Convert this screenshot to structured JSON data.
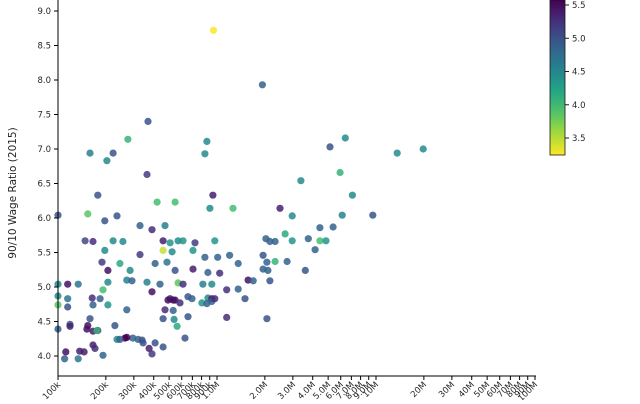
{
  "chart_data": {
    "type": "scatter",
    "title": "",
    "xlabel": "",
    "ylabel": "90/10 Wage Ratio (2015)",
    "x_scale": "log",
    "x_range_millions": [
      0.1,
      100
    ],
    "y_range": [
      3.7,
      9.2
    ],
    "grid": false,
    "x_ticks": [
      {
        "v": 0.1,
        "label": "100k"
      },
      {
        "v": 0.2,
        "label": "200k"
      },
      {
        "v": 0.3,
        "label": "300k"
      },
      {
        "v": 0.4,
        "label": "400k"
      },
      {
        "v": 0.5,
        "label": "500k"
      },
      {
        "v": 0.6,
        "label": "600k"
      },
      {
        "v": 0.7,
        "label": "700k"
      },
      {
        "v": 0.8,
        "label": "800k"
      },
      {
        "v": 0.9,
        "label": "900k"
      },
      {
        "v": 1,
        "label": "1.0M"
      },
      {
        "v": 2,
        "label": "2.0M"
      },
      {
        "v": 3,
        "label": "3.0M"
      },
      {
        "v": 4,
        "label": "4.0M"
      },
      {
        "v": 5,
        "label": "5.0M"
      },
      {
        "v": 6,
        "label": "6.0M"
      },
      {
        "v": 7,
        "label": "7.0M"
      },
      {
        "v": 8,
        "label": "8.0M"
      },
      {
        "v": 9,
        "label": "9.0M"
      },
      {
        "v": 10,
        "label": "10M"
      },
      {
        "v": 20,
        "label": "20M"
      },
      {
        "v": 30,
        "label": "30M"
      },
      {
        "v": 40,
        "label": "40M"
      },
      {
        "v": 50,
        "label": "50M"
      },
      {
        "v": 60,
        "label": "60M"
      },
      {
        "v": 70,
        "label": "70M"
      },
      {
        "v": 80,
        "label": "80M"
      },
      {
        "v": 90,
        "label": "90M"
      },
      {
        "v": 100,
        "label": "100M"
      }
    ],
    "y_ticks": [
      {
        "v": 4.0,
        "label": "4.0"
      },
      {
        "v": 4.5,
        "label": "4.5"
      },
      {
        "v": 5.0,
        "label": "5.0"
      },
      {
        "v": 5.5,
        "label": "5.5"
      },
      {
        "v": 6.0,
        "label": "6.0"
      },
      {
        "v": 6.5,
        "label": "6.5"
      },
      {
        "v": 7.0,
        "label": "7.0"
      },
      {
        "v": 7.5,
        "label": "7.5"
      },
      {
        "v": 8.0,
        "label": "8.0"
      },
      {
        "v": 8.5,
        "label": "8.5"
      },
      {
        "v": 9.0,
        "label": "9.0"
      }
    ],
    "colorbar": {
      "colormap": "viridis_reversed",
      "position": "top-right",
      "tick_labels": [
        "5.5",
        "5.0",
        "4.5",
        "4.0",
        "3.5"
      ],
      "tick_values": [
        5.5,
        5.0,
        4.5,
        4.0,
        3.5
      ],
      "value_min": 3.3,
      "value_max": 5.6
    },
    "points": [
      [
        0.95,
        8.72,
        3.3
      ],
      [
        1.93,
        7.93,
        4.9
      ],
      [
        0.368,
        7.4,
        5.0
      ],
      [
        5.14,
        7.03,
        5.0
      ],
      [
        6.41,
        7.16,
        4.5
      ],
      [
        13.6,
        6.94,
        4.5
      ],
      [
        19.8,
        7.0,
        4.5
      ],
      [
        0.275,
        7.14,
        4.1
      ],
      [
        0.159,
        6.94,
        4.6
      ],
      [
        0.222,
        6.94,
        5.0
      ],
      [
        0.203,
        6.83,
        4.5
      ],
      [
        0.864,
        7.11,
        4.5
      ],
      [
        0.839,
        6.93,
        4.5
      ],
      [
        0.363,
        6.63,
        5.2
      ],
      [
        3.37,
        6.54,
        4.5
      ],
      [
        5.95,
        6.66,
        4.1
      ],
      [
        0.178,
        6.33,
        5.0
      ],
      [
        0.942,
        6.33,
        5.4
      ],
      [
        0.42,
        6.23,
        4.0
      ],
      [
        0.545,
        6.23,
        4.0
      ],
      [
        0.902,
        6.14,
        4.5
      ],
      [
        0.154,
        6.06,
        3.9
      ],
      [
        0.1,
        6.04,
        5.0
      ],
      [
        0.197,
        5.96,
        5.0
      ],
      [
        2.49,
        6.14,
        5.4
      ],
      [
        7.1,
        6.33,
        4.5
      ],
      [
        6.13,
        6.04,
        4.6
      ],
      [
        9.55,
        6.04,
        5.0
      ],
      [
        2.97,
        6.03,
        4.5
      ],
      [
        4.44,
        5.86,
        4.9
      ],
      [
        5.37,
        5.87,
        4.9
      ],
      [
        2.68,
        5.77,
        4.2
      ],
      [
        1.26,
        6.14,
        4.0
      ],
      [
        0.235,
        6.03,
        5.0
      ],
      [
        0.328,
        5.89,
        4.9
      ],
      [
        0.39,
        5.83,
        5.3
      ],
      [
        0.471,
        5.89,
        4.6
      ],
      [
        0.148,
        5.67,
        5.1
      ],
      [
        0.166,
        5.66,
        5.3
      ],
      [
        0.222,
        5.67,
        4.5
      ],
      [
        0.256,
        5.66,
        4.5
      ],
      [
        0.197,
        5.53,
        4.5
      ],
      [
        0.458,
        5.67,
        5.4
      ],
      [
        0.507,
        5.64,
        4.4
      ],
      [
        0.569,
        5.67,
        4.5
      ],
      [
        0.611,
        5.67,
        4.4
      ],
      [
        0.727,
        5.64,
        5.2
      ],
      [
        0.969,
        5.67,
        4.4
      ],
      [
        0.458,
        5.53,
        3.5
      ],
      [
        0.522,
        5.51,
        4.5
      ],
      [
        0.706,
        5.53,
        4.4
      ],
      [
        0.328,
        5.47,
        5.2
      ],
      [
        2.03,
        5.7,
        4.9
      ],
      [
        2.15,
        5.66,
        4.9
      ],
      [
        2.32,
        5.66,
        4.9
      ],
      [
        2.97,
        5.67,
        4.4
      ],
      [
        3.75,
        5.7,
        4.9
      ],
      [
        4.44,
        5.67,
        4.0
      ],
      [
        4.85,
        5.67,
        4.4
      ],
      [
        4.14,
        5.54,
        4.9
      ],
      [
        1.2,
        5.46,
        4.9
      ],
      [
        1.01,
        5.43,
        4.9
      ],
      [
        0.839,
        5.43,
        4.9
      ],
      [
        0.189,
        5.36,
        5.2
      ],
      [
        0.206,
        5.24,
        5.5
      ],
      [
        0.245,
        5.34,
        4.2
      ],
      [
        0.284,
        5.24,
        4.5
      ],
      [
        0.408,
        5.34,
        4.9
      ],
      [
        0.485,
        5.36,
        4.7
      ],
      [
        0.545,
        5.24,
        5.0
      ],
      [
        0.706,
        5.26,
        5.4
      ],
      [
        0.876,
        5.21,
        4.9
      ],
      [
        1.04,
        5.2,
        5.3
      ],
      [
        1.36,
        5.34,
        4.9
      ],
      [
        1.95,
        5.46,
        5.0
      ],
      [
        2.06,
        5.36,
        4.9
      ],
      [
        2.32,
        5.37,
        4.1
      ],
      [
        2.76,
        5.37,
        4.9
      ],
      [
        1.95,
        5.26,
        4.9
      ],
      [
        2.09,
        5.24,
        4.9
      ],
      [
        3.59,
        5.24,
        5.0
      ],
      [
        0.1,
        5.04,
        4.5
      ],
      [
        0.115,
        5.04,
        5.5
      ],
      [
        0.134,
        5.04,
        4.7
      ],
      [
        0.206,
        5.07,
        4.5
      ],
      [
        0.271,
        5.1,
        4.6
      ],
      [
        0.292,
        5.09,
        4.9
      ],
      [
        0.192,
        4.96,
        4.0
      ],
      [
        0.363,
        5.07,
        4.6
      ],
      [
        0.438,
        5.04,
        4.9
      ],
      [
        0.569,
        5.06,
        3.9
      ],
      [
        0.611,
        5.04,
        5.3
      ],
      [
        0.815,
        5.04,
        4.6
      ],
      [
        0.928,
        5.04,
        4.5
      ],
      [
        1.57,
        5.1,
        5.5
      ],
      [
        1.69,
        5.09,
        4.9
      ],
      [
        2.15,
        5.09,
        5.0
      ],
      [
        1.15,
        4.96,
        5.3
      ],
      [
        1.36,
        4.97,
        4.9
      ],
      [
        0.1,
        4.87,
        4.5
      ],
      [
        0.115,
        4.83,
        4.7
      ],
      [
        0.164,
        4.84,
        5.3
      ],
      [
        0.184,
        4.83,
        4.9
      ],
      [
        0.39,
        4.93,
        5.5
      ],
      [
        0.507,
        4.83,
        5.4
      ],
      [
        0.545,
        4.81,
        5.5
      ],
      [
        0.657,
        4.86,
        5.0
      ],
      [
        0.876,
        4.84,
        4.5
      ],
      [
        0.928,
        4.83,
        5.4
      ],
      [
        0.1,
        4.74,
        3.9
      ],
      [
        0.166,
        4.74,
        4.9
      ],
      [
        0.206,
        4.74,
        4.4
      ],
      [
        0.492,
        4.81,
        5.5
      ],
      [
        0.53,
        4.81,
        5.5
      ],
      [
        0.585,
        4.77,
        5.3
      ],
      [
        0.696,
        4.83,
        4.9
      ],
      [
        0.804,
        4.77,
        4.4
      ],
      [
        0.864,
        4.76,
        4.9
      ],
      [
        0.928,
        4.79,
        4.9
      ],
      [
        0.969,
        4.83,
        5.3
      ],
      [
        1.5,
        4.83,
        5.0
      ],
      [
        0.115,
        4.71,
        5.0
      ],
      [
        0.271,
        4.67,
        4.9
      ],
      [
        0.471,
        4.67,
        5.3
      ],
      [
        0.53,
        4.66,
        4.9
      ],
      [
        0.159,
        4.54,
        5.0
      ],
      [
        0.119,
        4.46,
        5.0
      ],
      [
        0.154,
        4.44,
        5.5
      ],
      [
        0.228,
        4.44,
        5.0
      ],
      [
        0.458,
        4.54,
        5.0
      ],
      [
        0.537,
        4.53,
        4.5
      ],
      [
        0.657,
        4.57,
        5.0
      ],
      [
        1.15,
        4.56,
        5.3
      ],
      [
        2.06,
        4.54,
        5.0
      ],
      [
        0.561,
        4.43,
        4.2
      ],
      [
        0.1,
        4.39,
        4.9
      ],
      [
        0.119,
        4.43,
        5.4
      ],
      [
        0.152,
        4.39,
        5.5
      ],
      [
        0.166,
        4.36,
        5.4
      ],
      [
        0.178,
        4.37,
        5.3
      ],
      [
        0.176,
        4.37,
        4.1
      ],
      [
        0.235,
        4.24,
        4.5
      ],
      [
        0.264,
        4.26,
        5.6
      ],
      [
        0.296,
        4.26,
        4.9
      ],
      [
        0.319,
        4.24,
        4.9
      ],
      [
        0.166,
        4.16,
        5.4
      ],
      [
        0.245,
        4.24,
        4.9
      ],
      [
        0.271,
        4.27,
        5.6
      ],
      [
        0.338,
        4.23,
        5.0
      ],
      [
        0.343,
        4.19,
        5.0
      ],
      [
        0.374,
        4.11,
        5.4
      ],
      [
        0.408,
        4.19,
        5.0
      ],
      [
        0.458,
        4.13,
        5.0
      ],
      [
        0.39,
        4.03,
        5.2
      ],
      [
        0.629,
        4.26,
        5.0
      ],
      [
        0.112,
        4.06,
        5.5
      ],
      [
        0.137,
        4.07,
        5.4
      ],
      [
        0.146,
        4.06,
        5.4
      ],
      [
        0.171,
        4.11,
        5.3
      ],
      [
        0.134,
        3.96,
        4.7
      ],
      [
        0.11,
        3.96,
        4.9
      ],
      [
        0.192,
        4.01,
        4.9
      ]
    ]
  }
}
